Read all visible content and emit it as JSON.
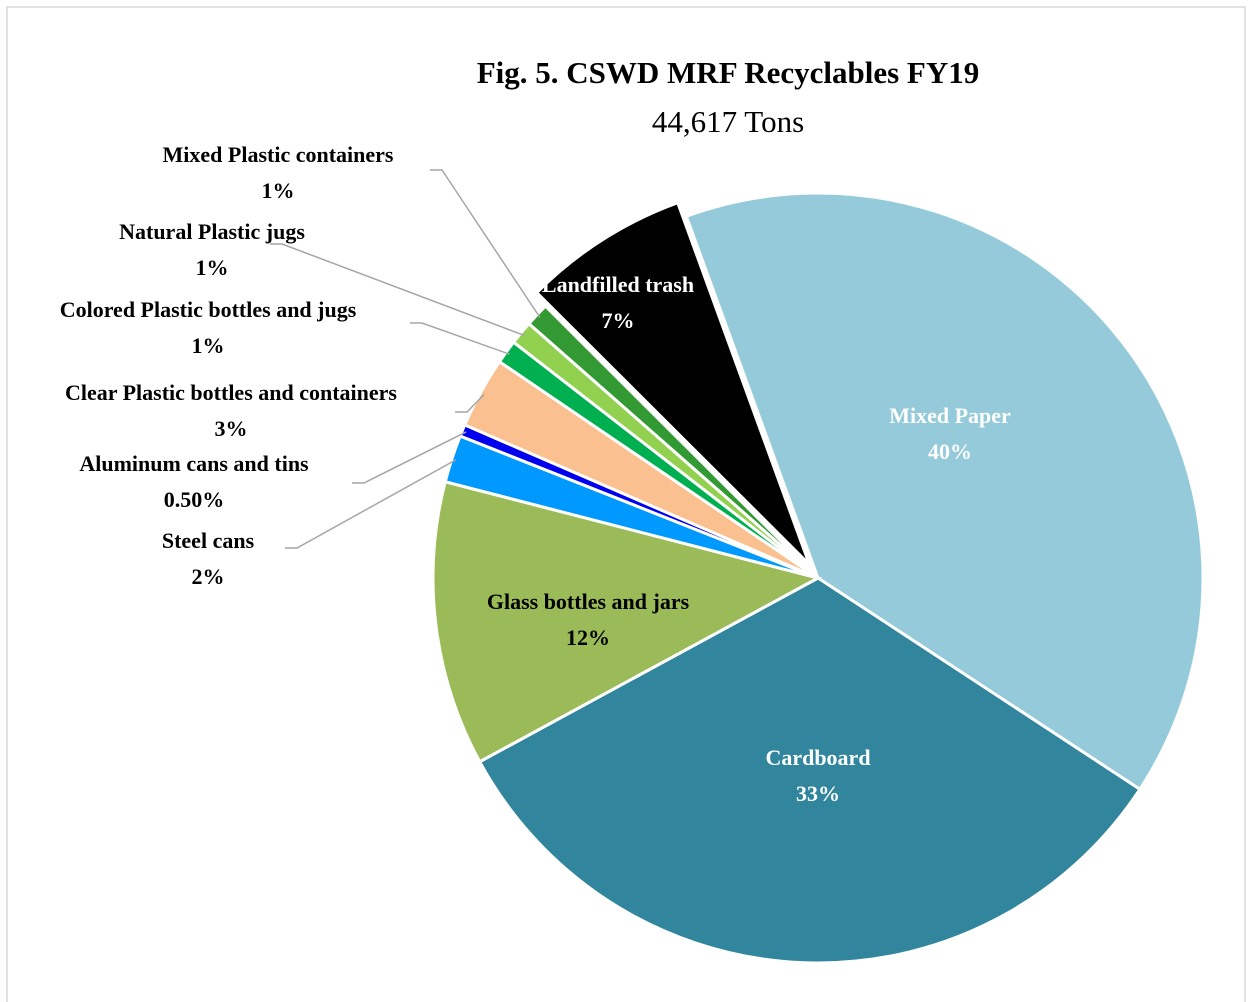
{
  "chart_data": {
    "type": "pie",
    "title": "Fig. 5. CSWD MRF Recyclables FY19",
    "subtitle": "44,617 Tons",
    "categories": [
      "Mixed Paper",
      "Cardboard",
      "Glass bottles and jars",
      "Steel cans",
      "Aluminum cans and tins",
      "Clear Plastic bottles and containers",
      "Colored Plastic bottles and jugs",
      "Natural Plastic jugs",
      "Mixed Plastic containers",
      "Landfilled trash"
    ],
    "values": [
      40,
      33,
      12,
      2,
      0.5,
      3,
      1,
      1,
      1,
      7
    ],
    "value_labels": [
      "40%",
      "33%",
      "12%",
      "2%",
      "0.50%",
      "3%",
      "1%",
      "1%",
      "1%",
      "7%"
    ],
    "colors": [
      "#95cadb",
      "#31859c",
      "#9bbb59",
      "#0099ff",
      "#0000ee",
      "#fac090",
      "#00b050",
      "#92d050",
      "#339933",
      "#000000"
    ]
  }
}
